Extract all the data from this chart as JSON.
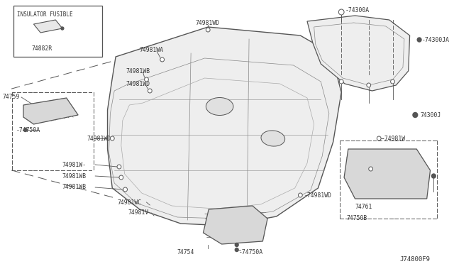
{
  "bg_color": "#ffffff",
  "line_color": "#555555",
  "text_color": "#333333",
  "diagram_code": "J74800F9",
  "insulator_label": "INSULATOR FUSIBLE",
  "part_74882R": "74882R",
  "part_74759": "74759",
  "part_74750A_l": "-74750A",
  "part_74981WD_l": "74981WD-",
  "part_74981WA": "74981WA",
  "part_74981WD_top": "74981WD",
  "part_74981WB_ul": "74981WB",
  "part_74981WD_ul": "74981WD",
  "part_74300A": "-74300A",
  "part_74300JA": "-74300JA",
  "part_74300J": "74300J",
  "part_74981W_r": "-74981W",
  "part_74981WD_r": "-74981WD",
  "part_74981WD_m": "-74981WD",
  "part_74981W_ll": "74981W-",
  "part_74981WB_ll": "74981WB",
  "part_74981WB_l2": "74981WB",
  "part_74981WC": "74981WC",
  "part_74981V": "74981V",
  "part_74754": "74754",
  "part_74750A_b": "-74750A",
  "part_74761": "74761",
  "part_74750B": "74750B"
}
